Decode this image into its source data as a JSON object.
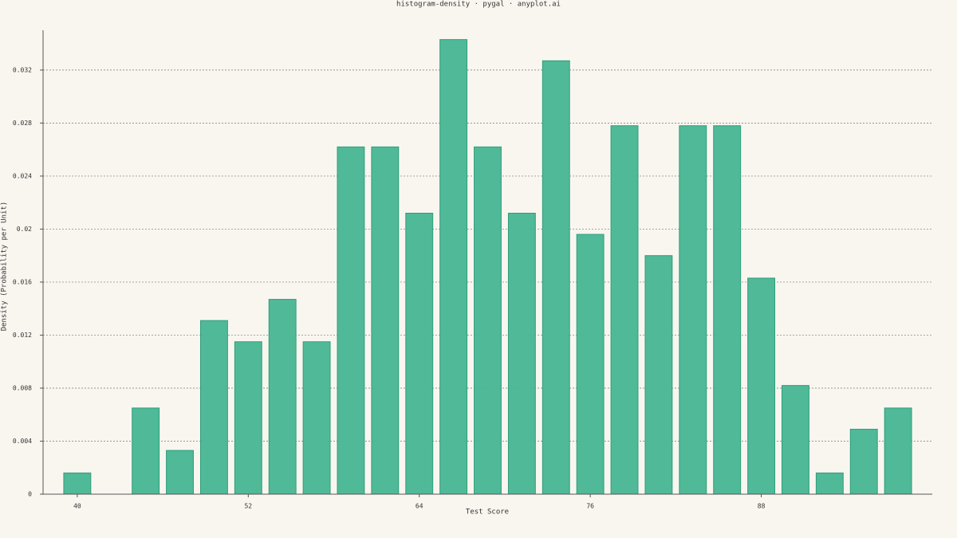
{
  "chart_data": {
    "type": "histogram",
    "title": "histogram-density · pygal · anyplot.ai",
    "xlabel": "Test Score",
    "ylabel": "Density (Probability per Unit)",
    "bins": [
      38.8,
      41.2,
      43.6,
      46,
      48.4,
      50.8,
      53.2,
      55.6,
      58,
      60.4,
      62.8,
      65.2,
      67.6,
      70,
      72.4,
      74.8,
      77.2,
      79.6,
      82,
      84.4,
      86.8,
      89.2,
      91.6,
      94,
      96.4,
      98.8
    ],
    "values": [
      0.0016,
      0,
      0.0065,
      0.0033,
      0.0131,
      0.0115,
      0.0147,
      0.0115,
      0.0262,
      0.0262,
      0.0212,
      0.0343,
      0.0262,
      0.0212,
      0.0327,
      0.0196,
      0.0278,
      0.018,
      0.0278,
      0.0278,
      0.0163,
      0.0082,
      0.0016,
      0.0049,
      0.0065
    ],
    "color": "#4cb896",
    "xlim": [
      37.6,
      100
    ],
    "xticks": [
      40,
      52,
      64,
      76,
      88
    ],
    "ylim": [
      0,
      0.035
    ],
    "yticks": [
      0,
      0.004,
      0.008,
      0.012,
      0.016,
      0.02,
      0.024,
      0.028,
      0.032
    ],
    "grid": true
  }
}
